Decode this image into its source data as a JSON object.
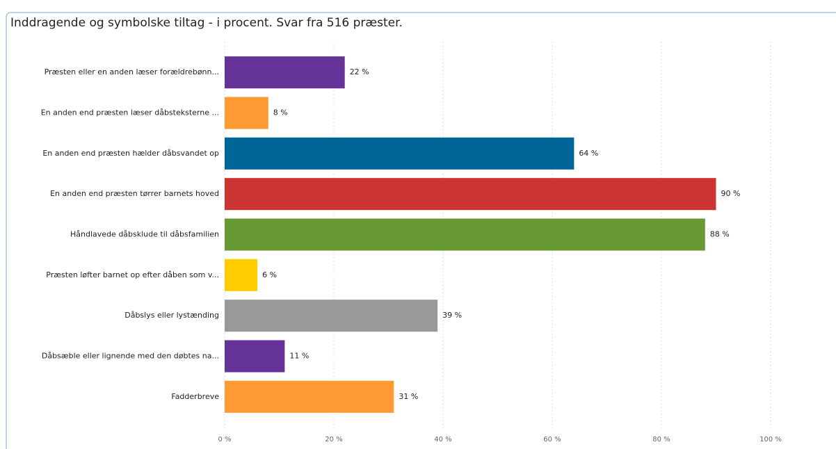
{
  "chart_data": {
    "type": "bar",
    "orientation": "horizontal",
    "title": "Inddragende og symbolske tiltag - i procent. Svar fra 516 præster.",
    "categories": [
      "Præsten eller en anden læser forældrebønn...",
      "En anden end præsten læser dåbsteksterne ...",
      "En anden end præsten hælder dåbsvandet op",
      "En anden end præsten tørrer barnets hoved",
      "Håndlavede dåbsklude til dåbsfamilien",
      "Præsten løfter barnet op efter dåben som v...",
      "Dåbslys eller lystænding",
      "Dåbsæble eller lignende med den døbtes na...",
      "Fadderbreve"
    ],
    "values": [
      22,
      8,
      64,
      90,
      88,
      6,
      39,
      11,
      31
    ],
    "value_labels": [
      "22 %",
      "8 %",
      "64 %",
      "90 %",
      "88 %",
      "6 %",
      "39 %",
      "11 %",
      "31 %"
    ],
    "colors": [
      "#663399",
      "#ff9933",
      "#006699",
      "#cc3333",
      "#669933",
      "#ffcc00",
      "#999999",
      "#663399",
      "#ff9933"
    ],
    "xlim": [
      0,
      100
    ],
    "xticks": [
      {
        "value": 0,
        "label": "0 %"
      },
      {
        "value": 20,
        "label": "20 %"
      },
      {
        "value": 40,
        "label": "40 %"
      },
      {
        "value": 60,
        "label": "60 %"
      },
      {
        "value": 80,
        "label": "80 %"
      },
      {
        "value": 100,
        "label": "100 %"
      }
    ],
    "grid": true
  }
}
